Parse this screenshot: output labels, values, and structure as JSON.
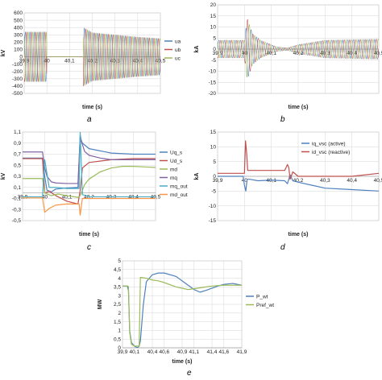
{
  "chart_data": [
    {
      "id": "a",
      "caption": "a",
      "type": "line",
      "title": "",
      "xlabel": "time (s)",
      "ylabel": "kV",
      "xlim": [
        39.9,
        40.5
      ],
      "ylim": [
        -500,
        600
      ],
      "x_ticks": [
        "39,9",
        "40",
        "40,1",
        "40,2",
        "40,3",
        "40,4",
        "40,5"
      ],
      "y_ticks": [
        "-500",
        "-400",
        "-300",
        "-200",
        "-100",
        "0",
        "100",
        "200",
        "300",
        "400",
        "500",
        "600"
      ],
      "grid": true,
      "legend": "right",
      "series": [
        {
          "name": "ua",
          "color": "#4f81bd",
          "wave": {
            "freq_hz": 50,
            "phase_deg": 0
          },
          "x": [
            39.9,
            39.999,
            40.0,
            40.16,
            40.161,
            40.2,
            40.3,
            40.4,
            40.5
          ],
          "amplitude": [
            340,
            340,
            0,
            0,
            400,
            330,
            300,
            270,
            250
          ]
        },
        {
          "name": "ub",
          "color": "#c0504d",
          "wave": {
            "freq_hz": 50,
            "phase_deg": -120
          },
          "x": [
            39.9,
            39.999,
            40.0,
            40.16,
            40.161,
            40.2,
            40.3,
            40.4,
            40.5
          ],
          "amplitude": [
            340,
            340,
            0,
            0,
            400,
            330,
            300,
            270,
            250
          ]
        },
        {
          "name": "uc",
          "color": "#9bbb59",
          "wave": {
            "freq_hz": 50,
            "phase_deg": 120
          },
          "x": [
            39.9,
            39.999,
            40.0,
            40.16,
            40.161,
            40.2,
            40.3,
            40.4,
            40.5
          ],
          "amplitude": [
            340,
            340,
            0,
            0,
            400,
            330,
            300,
            270,
            250
          ]
        }
      ]
    },
    {
      "id": "b",
      "caption": "b",
      "type": "line",
      "title": "",
      "xlabel": "time (s)",
      "ylabel": "kA",
      "xlim": [
        39.9,
        40.5
      ],
      "ylim": [
        -20,
        20
      ],
      "x_ticks": [
        "39,9",
        "40",
        "40,1",
        "40,2",
        "40,3",
        "40,4",
        "40,5"
      ],
      "y_ticks": [
        "-20",
        "-15",
        "-10",
        "-5",
        "0",
        "5",
        "10",
        "15",
        "20"
      ],
      "grid": true,
      "legend": "none",
      "series": [
        {
          "color": "#4f81bd",
          "wave": {
            "freq_hz": 50,
            "phase_deg": 0
          },
          "x": [
            39.9,
            40.0,
            40.01,
            40.03,
            40.06,
            40.09,
            40.12,
            40.16,
            40.2,
            40.3,
            40.5
          ],
          "amplitude": [
            4,
            4,
            14,
            7,
            4,
            2.5,
            1,
            0.5,
            2,
            4,
            4.5
          ]
        },
        {
          "color": "#c0504d",
          "wave": {
            "freq_hz": 50,
            "phase_deg": -120
          },
          "x": [
            39.9,
            40.0,
            40.01,
            40.03,
            40.06,
            40.09,
            40.12,
            40.16,
            40.2,
            40.3,
            40.5
          ],
          "amplitude": [
            4,
            4,
            14,
            7,
            4,
            2.5,
            1,
            0.5,
            2,
            4,
            4.5
          ]
        },
        {
          "color": "#9bbb59",
          "wave": {
            "freq_hz": 50,
            "phase_deg": 120
          },
          "x": [
            39.9,
            40.0,
            40.01,
            40.03,
            40.06,
            40.09,
            40.12,
            40.16,
            40.2,
            40.3,
            40.5
          ],
          "amplitude": [
            4,
            4,
            14,
            7,
            4,
            2.5,
            1,
            0.5,
            2,
            4,
            4.5
          ]
        }
      ]
    },
    {
      "id": "c",
      "caption": "c",
      "type": "line",
      "title": "",
      "xlabel": "time (s)",
      "ylabel": "kV",
      "xlim": [
        39.9,
        40.5
      ],
      "ylim": [
        -0.5,
        1.1
      ],
      "x_ticks": [
        "39,9",
        "40",
        "40,1",
        "40,2",
        "40,3",
        "40,4",
        "40,5"
      ],
      "y_ticks": [
        "-0,5",
        "-0,3",
        "-0,1",
        "0,1",
        "0,3",
        "0,5",
        "0,7",
        "0,9",
        "1,1"
      ],
      "grid": true,
      "legend": "right",
      "series": [
        {
          "name": "Uq_s",
          "color": "#4f81bd",
          "x": [
            39.9,
            39.99,
            40.0,
            40.01,
            40.03,
            40.05,
            40.1,
            40.15,
            40.16,
            40.165,
            40.17,
            40.2,
            40.3,
            40.4,
            40.5
          ],
          "y": [
            0.63,
            0.63,
            0.3,
            0.05,
            0.02,
            0.07,
            0.09,
            0.1,
            1.05,
            0.95,
            0.9,
            0.8,
            0.72,
            0.7,
            0.7
          ]
        },
        {
          "name": "Ud_s",
          "color": "#c0504d",
          "x": [
            39.9,
            39.99,
            40.0,
            40.02,
            40.05,
            40.1,
            40.15,
            40.16,
            40.17,
            40.2,
            40.3,
            40.4,
            40.5
          ],
          "y": [
            0.62,
            0.62,
            0.0,
            0.03,
            -0.05,
            -0.15,
            -0.2,
            0.05,
            0.45,
            0.55,
            0.6,
            0.62,
            0.62
          ]
        },
        {
          "name": "md",
          "color": "#9bbb59",
          "x": [
            39.9,
            39.99,
            40.0,
            40.03,
            40.06,
            40.1,
            40.15,
            40.16,
            40.18,
            40.2,
            40.25,
            40.3,
            40.35,
            40.4,
            40.45,
            40.5
          ],
          "y": [
            0.26,
            0.26,
            0.0,
            -0.05,
            -0.02,
            -0.05,
            -0.08,
            -0.05,
            0.15,
            0.25,
            0.38,
            0.45,
            0.48,
            0.48,
            0.47,
            0.46
          ]
        },
        {
          "name": "mq",
          "color": "#8064a2",
          "x": [
            39.9,
            39.99,
            40.0,
            40.01,
            40.03,
            40.05,
            40.1,
            40.15,
            40.16,
            40.18,
            40.2,
            40.25,
            40.3,
            40.4,
            40.5
          ],
          "y": [
            0.74,
            0.74,
            0.45,
            0.3,
            0.2,
            0.18,
            0.17,
            0.17,
            1.0,
            0.75,
            0.68,
            0.63,
            0.6,
            0.6,
            0.6
          ]
        },
        {
          "name": "mq_out",
          "color": "#4bacc6",
          "x": [
            39.9,
            39.99,
            40.0,
            40.02,
            40.05,
            40.1,
            40.155,
            40.16,
            40.17,
            40.2,
            40.3,
            40.4,
            40.5
          ],
          "y": [
            -0.07,
            -0.07,
            0.6,
            0.1,
            0.1,
            0.08,
            0.08,
            1.1,
            -0.03,
            -0.07,
            -0.07,
            -0.07,
            -0.07
          ]
        },
        {
          "name": "md_out",
          "color": "#f79646",
          "x": [
            39.9,
            39.99,
            40.0,
            40.02,
            40.05,
            40.1,
            40.155,
            40.16,
            40.17,
            40.2,
            40.3,
            40.4,
            40.5
          ],
          "y": [
            -0.09,
            -0.09,
            -0.35,
            -0.28,
            -0.22,
            -0.2,
            -0.2,
            -0.4,
            -0.1,
            -0.1,
            -0.1,
            -0.1,
            -0.1
          ]
        }
      ]
    },
    {
      "id": "d",
      "caption": "d",
      "type": "line",
      "title": "",
      "xlabel": "time (s)",
      "ylabel": "kA",
      "xlim": [
        39.9,
        40.5
      ],
      "ylim": [
        -15,
        15
      ],
      "x_ticks": [
        "39,9",
        "40",
        "40,1",
        "40,2",
        "40,3",
        "40,4",
        "40,5"
      ],
      "y_ticks": [
        "-15",
        "-10",
        "-5",
        "0",
        "5",
        "10",
        "15"
      ],
      "grid": true,
      "legend": "top-right",
      "series": [
        {
          "name": "iq_vsc (active)",
          "color": "#4f81bd",
          "x": [
            39.9,
            39.995,
            40.0,
            40.005,
            40.01,
            40.02,
            40.05,
            40.1,
            40.15,
            40.16,
            40.17,
            40.18,
            40.2,
            40.25,
            40.3,
            40.4,
            40.5
          ],
          "y": [
            0,
            0,
            -3,
            -5,
            -1,
            -1,
            -1.5,
            -1.3,
            -1.5,
            -2.5,
            0.5,
            -1.5,
            -2,
            -3,
            -4,
            -4.5,
            -5
          ]
        },
        {
          "name": "id_vsc (reactive)",
          "color": "#c0504d",
          "x": [
            39.9,
            40.0,
            40.004,
            40.008,
            40.012,
            40.02,
            40.05,
            40.1,
            40.15,
            40.16,
            40.165,
            40.17,
            40.18,
            40.2,
            40.25,
            40.3,
            40.4,
            40.5
          ],
          "y": [
            1,
            1,
            12,
            8,
            2,
            2,
            2,
            2,
            2,
            4,
            3,
            -1,
            1.5,
            0,
            0,
            0,
            0,
            1
          ]
        }
      ]
    },
    {
      "id": "e",
      "caption": "e",
      "type": "line",
      "title": "",
      "xlabel": "time (s)",
      "ylabel": "MW",
      "xlim": [
        39.9,
        41.9
      ],
      "ylim": [
        0,
        5
      ],
      "x_ticks": [
        "39,9",
        "40,1",
        "40,4",
        "40,6",
        "40,9",
        "41,1",
        "41,4",
        "41,6",
        "41,9"
      ],
      "y_ticks": [
        "0",
        "0,5",
        "1",
        "1,5",
        "2",
        "2,5",
        "3",
        "3,5",
        "4",
        "4,5",
        "5"
      ],
      "grid": true,
      "legend": "right",
      "series": [
        {
          "name": "P_wt",
          "color": "#4f81bd",
          "x": [
            39.9,
            39.98,
            40.0,
            40.02,
            40.05,
            40.1,
            40.15,
            40.18,
            40.2,
            40.25,
            40.3,
            40.4,
            40.5,
            40.6,
            40.8,
            40.9,
            41.0,
            41.1,
            41.2,
            41.3,
            41.5,
            41.6,
            41.75,
            41.9
          ],
          "y": [
            3.55,
            3.55,
            3.3,
            1.0,
            0.3,
            0.1,
            0.0,
            0.1,
            0.4,
            2.5,
            3.8,
            4.2,
            4.3,
            4.3,
            4.1,
            3.85,
            3.6,
            3.35,
            3.2,
            3.3,
            3.55,
            3.65,
            3.7,
            3.6
          ]
        },
        {
          "name": "Pref_wt",
          "color": "#9bbb59",
          "x": [
            39.9,
            39.99,
            40.0,
            40.02,
            40.05,
            40.1,
            40.15,
            40.18,
            40.2,
            40.3,
            40.4,
            40.5,
            40.6,
            40.8,
            41.0,
            41.2,
            41.4,
            41.6,
            41.8,
            41.9
          ],
          "y": [
            3.55,
            3.55,
            3.5,
            0.9,
            0.2,
            0.1,
            0.1,
            0.1,
            4.05,
            4.0,
            3.9,
            3.85,
            3.75,
            3.5,
            3.35,
            3.45,
            3.55,
            3.6,
            3.6,
            3.6
          ]
        }
      ]
    }
  ],
  "captions": {
    "a": "a",
    "b": "b",
    "c": "c",
    "d": "d",
    "e": "e"
  }
}
